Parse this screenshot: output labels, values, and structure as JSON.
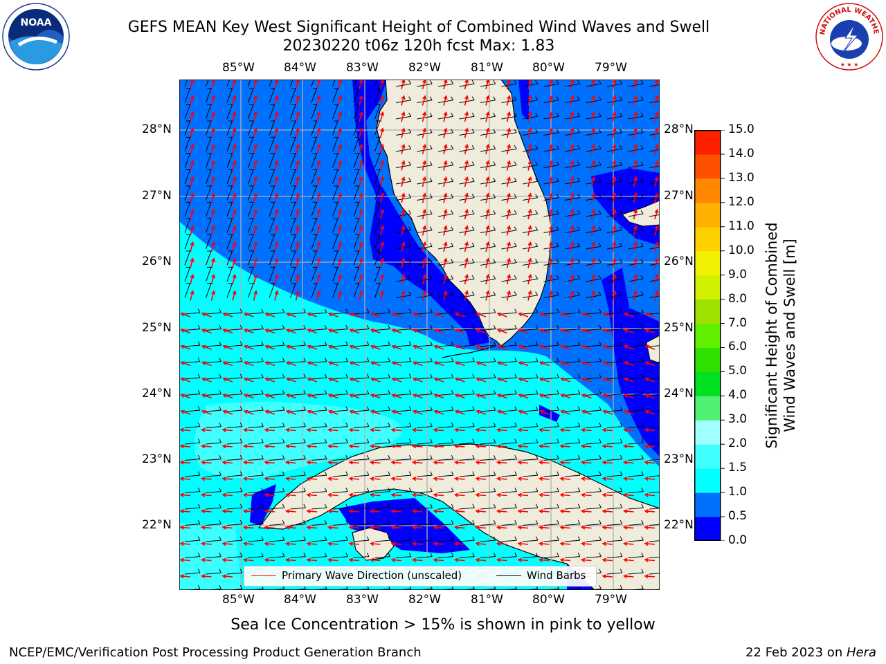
{
  "title_line1": "GEFS MEAN Key West Significant Height of Combined Wind Waves and Swell",
  "title_line2": "20230220 t06z 120h fcst   Max: 1.83",
  "noaa_logo_text": "NOAA",
  "nws_logo_text": "NATIONAL WEATHER SERVICE",
  "lon_labels": [
    "85°W",
    "84°W",
    "83°W",
    "82°W",
    "81°W",
    "80°W",
    "79°W"
  ],
  "lat_labels": [
    "28°N",
    "27°N",
    "26°N",
    "25°N",
    "24°N",
    "23°N",
    "22°N"
  ],
  "colorbar": {
    "title_line1": "Significant Height of Combined",
    "title_line2": "Wind Waves and Swell [m]",
    "ticks": [
      "0.0",
      "0.5",
      "1.0",
      "1.5",
      "2.0",
      "3.0",
      "4.0",
      "5.0",
      "6.0",
      "7.0",
      "8.0",
      "9.0",
      "10.0",
      "11.0",
      "12.0",
      "13.0",
      "14.0",
      "15.0"
    ],
    "colors": [
      "#0000ff",
      "#0070ff",
      "#00ffff",
      "#40ffff",
      "#a0ffff",
      "#50f070",
      "#00e020",
      "#30e000",
      "#60f000",
      "#a0e000",
      "#d0f000",
      "#f0f000",
      "#ffd000",
      "#ffb000",
      "#ff8800",
      "#ff5000",
      "#ff2000",
      "#ff0000"
    ]
  },
  "legend": {
    "wave_label": "Primary Wave Direction (unscaled)",
    "wind_label": "Wind Barbs"
  },
  "sea_ice_note": "Sea Ice Concentration > 15% is shown in pink to yellow",
  "credit": "NCEP/EMC/Verification Post Processing Product Generation Branch",
  "date_prefix": "22 Feb 2023 on ",
  "date_host": "Hera",
  "colors": {
    "land": "#efecdc",
    "wave_arrow": "#ff0000",
    "wind_barb": "#000000",
    "grid": "#b0b0b0"
  }
}
